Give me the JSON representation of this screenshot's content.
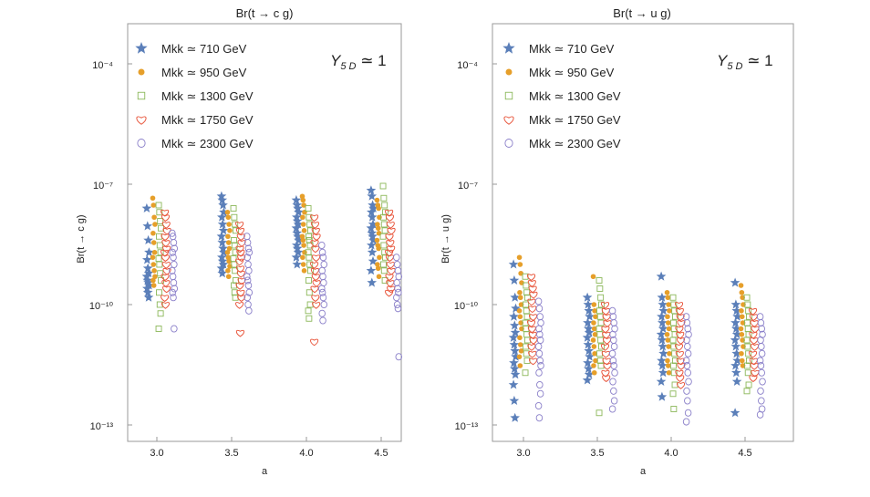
{
  "chart_data": [
    {
      "type": "scatter",
      "title": "Br(t → c g)",
      "xlabel": "a",
      "ylabel": "Br(t → c g)",
      "annotation": "Y5D ≃ 1",
      "yscale": "log",
      "xlim": [
        2.75,
        4.75
      ],
      "ylim": [
        3e-14,
        0.0005
      ],
      "xticks": [
        3.0,
        3.5,
        4.0,
        4.5
      ],
      "xtick_labels": [
        "3.0",
        "3.5",
        "4.0",
        "4.5"
      ],
      "yticks": [
        0.0001,
        1e-07,
        1e-10,
        1e-13
      ],
      "ytick_labels": [
        "10⁻⁴",
        "10⁻⁷",
        "10⁻¹⁰",
        "10⁻¹³"
      ],
      "legend_position": "top-left",
      "grid": false,
      "series": [
        {
          "name": "Mkk ≃ 710 GeV",
          "marker": "star",
          "color": "#5b7fb9",
          "offset": -0.06,
          "points": {
            "3.0": [
              2.5e-08,
              9e-09,
              4e-09,
              2e-09,
              1.3e-09,
              8e-10,
              6e-10,
              5e-10,
              4e-10,
              3.5e-10,
              3e-10,
              2.5e-10,
              2e-10,
              1.5e-10
            ],
            "3.5": [
              5e-08,
              4e-08,
              3e-08,
              2e-08,
              1.5e-08,
              1e-08,
              7e-09,
              5e-09,
              3.5e-09,
              2.5e-09,
              2e-09,
              1.5e-09,
              1.2e-09,
              1e-09,
              8e-10,
              6e-10
            ],
            "4.0": [
              4e-08,
              3e-08,
              2.5e-08,
              2e-08,
              1.5e-08,
              1.2e-08,
              1e-08,
              8e-09,
              6e-09,
              5e-09,
              4e-09,
              3e-09,
              2.5e-09,
              2e-09,
              1.5e-09,
              1e-09
            ],
            "4.5": [
              7e-08,
              5e-08,
              3e-08,
              2.5e-08,
              2e-08,
              1.5e-08,
              1e-08,
              8e-09,
              6e-09,
              5e-09,
              4e-09,
              3e-09,
              2e-09,
              1.2e-09,
              7e-10,
              3.5e-10
            ]
          }
        },
        {
          "name": "Mkk ≃ 950 GeV",
          "marker": "dot",
          "color": "#e69f2a",
          "offset": -0.02,
          "points": {
            "3.0": [
              4.5e-08,
              3e-08,
              1.5e-08,
              1e-08,
              6e-09,
              3.5e-09,
              2e-09,
              1.5e-09,
              1e-09,
              7e-10,
              5e-10,
              4e-10,
              3e-10
            ],
            "3.5": [
              2e-08,
              1.5e-08,
              1e-08,
              7e-09,
              5e-09,
              3.5e-09,
              2.5e-09,
              2e-09,
              1.5e-09,
              1.2e-09,
              9e-10,
              7e-10,
              5e-10
            ],
            "4.0": [
              5e-08,
              4e-08,
              3e-08,
              2e-08,
              1.5e-08,
              1e-08,
              7e-09,
              5e-09,
              4e-09,
              3e-09,
              2e-09,
              1.5e-09,
              1e-09,
              7e-10
            ],
            "4.5": [
              4e-08,
              3e-08,
              2.5e-08,
              1.5e-08,
              1e-08,
              8e-09,
              6e-09,
              4e-09,
              3e-09,
              2.5e-09,
              1.5e-09,
              1e-09,
              8e-10,
              5e-10
            ]
          }
        },
        {
          "name": "Mkk ≃ 1300 GeV",
          "marker": "square",
          "color": "#8cb85a",
          "offset": 0.02,
          "points": {
            "3.0": [
              3e-08,
              2e-08,
              1.2e-08,
              8e-09,
              5e-09,
              3e-09,
              2e-09,
              1.4e-09,
              1e-09,
              6e-10,
              4e-10,
              2e-10,
              1e-10,
              6e-11,
              2.5e-11
            ],
            "3.5": [
              2.5e-08,
              1.5e-08,
              1e-08,
              7e-09,
              4e-09,
              3e-09,
              2e-09,
              1.4e-09,
              1e-09,
              7e-10,
              4e-10,
              3e-10,
              2e-10,
              1.5e-10
            ],
            "4.0": [
              2.5e-08,
              1.5e-08,
              1e-08,
              7e-09,
              5e-09,
              4e-09,
              3e-09,
              2e-09,
              1.5e-09,
              1e-09,
              7e-10,
              4e-10,
              2e-10,
              1e-10,
              7e-11,
              4.5e-11
            ],
            "4.5": [
              9e-08,
              4.5e-08,
              3e-08,
              2e-08,
              1.5e-08,
              1e-08,
              7e-09,
              5e-09,
              3e-09,
              2e-09,
              1.5e-09,
              1e-09,
              7e-10,
              4e-10
            ]
          }
        },
        {
          "name": "Mkk ≃ 1750 GeV",
          "marker": "heart",
          "color": "#e8543a",
          "offset": 0.06,
          "points": {
            "3.0": [
              2e-08,
              1.5e-08,
              1e-08,
              7e-09,
              5e-09,
              3.5e-09,
              2.5e-09,
              2e-09,
              1.5e-09,
              1e-09,
              7e-10,
              5e-10,
              3.5e-10,
              2.5e-10,
              1.5e-10,
              1e-10
            ],
            "3.5": [
              1e-08,
              7e-09,
              5e-09,
              3.5e-09,
              2.5e-09,
              2e-09,
              1.5e-09,
              1.2e-09,
              8e-10,
              6e-10,
              4e-10,
              3e-10,
              2e-10,
              1.5e-10,
              1e-10,
              2e-11
            ],
            "4.0": [
              1.5e-08,
              1e-08,
              7e-09,
              5e-09,
              3.5e-09,
              2.5e-09,
              1.5e-09,
              1e-09,
              7e-10,
              5e-10,
              3.5e-10,
              2.5e-10,
              1.5e-10,
              1e-10,
              1.2e-11
            ],
            "4.5": [
              2e-08,
              1.5e-08,
              1e-08,
              7e-09,
              5e-09,
              3.5e-09,
              2.5e-09,
              2e-09,
              1.5e-09,
              1e-09,
              7e-10,
              5e-10,
              3.5e-10,
              2.5e-10,
              2e-10
            ]
          }
        },
        {
          "name": "Mkk ≃ 2300 GeV",
          "marker": "circle",
          "color": "#8a7fc9",
          "offset": 0.11,
          "points": {
            "3.0": [
              6e-09,
              5e-09,
              3.5e-09,
              2.5e-09,
              2e-09,
              1.5e-09,
              1e-09,
              7e-10,
              5e-10,
              3.5e-10,
              2.5e-10,
              2e-10,
              1.5e-10,
              2.5e-11
            ],
            "3.5": [
              5e-09,
              3.5e-09,
              2.5e-09,
              2e-09,
              1.5e-09,
              1e-09,
              7e-10,
              5e-10,
              4e-10,
              3e-10,
              2e-10,
              1.5e-10,
              1e-10,
              7e-11
            ],
            "4.0": [
              3e-09,
              2e-09,
              1.5e-09,
              1e-09,
              7e-10,
              5e-10,
              3.5e-10,
              2.5e-10,
              2e-10,
              1.5e-10,
              1e-10,
              6e-11,
              4e-11
            ],
            "4.5": [
              1.5e-09,
              1e-09,
              7e-10,
              5e-10,
              3.5e-10,
              2.5e-10,
              2e-10,
              1.5e-10,
              1e-10,
              8e-11,
              5e-12
            ]
          }
        }
      ]
    },
    {
      "type": "scatter",
      "title": "Br(t → u g)",
      "xlabel": "a",
      "ylabel": "Br(t → u g)",
      "annotation": "Y5D ≃ 1",
      "yscale": "log",
      "xlim": [
        2.75,
        4.75
      ],
      "ylim": [
        3e-14,
        0.0005
      ],
      "xticks": [
        3.0,
        3.5,
        4.0,
        4.5
      ],
      "xtick_labels": [
        "3.0",
        "3.5",
        "4.0",
        "4.5"
      ],
      "yticks": [
        0.0001,
        1e-07,
        1e-10,
        1e-13
      ],
      "ytick_labels": [
        "10⁻⁴",
        "10⁻⁷",
        "10⁻¹⁰",
        "10⁻¹³"
      ],
      "legend_position": "top-left",
      "grid": false,
      "series": [
        {
          "name": "Mkk ≃ 710 GeV",
          "marker": "star",
          "color": "#5b7fb9",
          "offset": -0.06,
          "points": {
            "3.0": [
              1e-09,
              4e-10,
              1.5e-10,
              8e-11,
              5e-11,
              3e-11,
              2e-11,
              1.5e-11,
              1e-11,
              7e-12,
              5e-12,
              3.5e-12,
              2.5e-12,
              1.8e-12,
              1e-12,
              4e-13,
              1.5e-13
            ],
            "3.5": [
              1.5e-10,
              1e-10,
              7e-11,
              5e-11,
              3.5e-11,
              2.5e-11,
              2e-11,
              1.5e-11,
              1e-11,
              7e-12,
              5e-12,
              3.5e-12,
              2.5e-12,
              1.8e-12,
              1.3e-12
            ],
            "4.0": [
              5e-10,
              1.5e-10,
              1e-10,
              7e-11,
              5e-11,
              3.5e-11,
              2.5e-11,
              1.8e-11,
              1.3e-11,
              9e-12,
              6e-12,
              4e-12,
              3e-12,
              2e-12,
              1.2e-12,
              5e-13
            ],
            "4.5": [
              3.5e-10,
              1e-10,
              7e-11,
              5e-11,
              3.5e-11,
              2.5e-11,
              1.8e-11,
              1.3e-11,
              9e-12,
              6e-12,
              4e-12,
              3e-12,
              2e-12,
              1.2e-12,
              2e-13
            ]
          }
        },
        {
          "name": "Mkk ≃ 950 GeV",
          "marker": "dot",
          "color": "#e69f2a",
          "offset": -0.02,
          "points": {
            "3.0": [
              1.5e-09,
              1e-09,
              6e-10,
              3.5e-10,
              2e-10,
              1.5e-10,
              1e-10,
              7e-11,
              5e-11,
              3.5e-11,
              2.5e-11,
              1.5e-11,
              1e-11,
              7e-12,
              5e-12,
              3e-12
            ],
            "3.5": [
              5e-10,
              1e-10,
              7e-11,
              5e-11,
              3.5e-11,
              2.5e-11,
              1.8e-11,
              1.3e-11,
              9e-12,
              6e-12,
              4e-12,
              3e-12,
              2e-12
            ],
            "4.0": [
              2e-10,
              1.5e-10,
              1e-10,
              7e-11,
              5e-11,
              3.5e-11,
              2.5e-11,
              1.8e-11,
              1.3e-11,
              9e-12,
              6e-12,
              4e-12,
              3e-12,
              2e-12
            ],
            "4.5": [
              3e-10,
              2e-10,
              1.5e-10,
              1e-10,
              7e-11,
              5e-11,
              3.5e-11,
              2.5e-11,
              1.8e-11,
              1.3e-11,
              9e-12,
              6e-12,
              4e-12,
              3e-12
            ]
          }
        },
        {
          "name": "Mkk ≃ 1300 GeV",
          "marker": "square",
          "color": "#8cb85a",
          "offset": 0.02,
          "points": {
            "3.0": [
              5e-10,
              3e-10,
              2e-10,
              1.5e-10,
              1e-10,
              7e-11,
              5e-11,
              3.5e-11,
              2.5e-11,
              1.8e-11,
              1.3e-11,
              9e-12,
              6e-12,
              4e-12,
              2e-12
            ],
            "3.5": [
              4e-10,
              2.5e-10,
              1.5e-10,
              1e-10,
              7e-11,
              5e-11,
              3.5e-11,
              2.5e-11,
              1.8e-11,
              1.3e-11,
              9e-12,
              6e-12,
              4e-12,
              3e-12,
              2e-13
            ],
            "4.0": [
              1.5e-10,
              1e-10,
              7e-11,
              5e-11,
              3.5e-11,
              2.5e-11,
              1.8e-11,
              1.3e-11,
              9e-12,
              6e-12,
              4e-12,
              3e-12,
              2e-12,
              1e-12,
              6e-13,
              2.5e-13
            ],
            "4.5": [
              1.5e-10,
              1e-10,
              7e-11,
              5e-11,
              3.5e-11,
              2.5e-11,
              1.8e-11,
              1.3e-11,
              9e-12,
              6e-12,
              4e-12,
              3e-12,
              2e-12,
              1e-12,
              7e-13
            ]
          }
        },
        {
          "name": "Mkk ≃ 1750 GeV",
          "marker": "heart",
          "color": "#e8543a",
          "offset": 0.06,
          "points": {
            "3.0": [
              5e-10,
              3.5e-10,
              2.5e-10,
              1.8e-10,
              1.2e-10,
              8e-11,
              5e-11,
              3.5e-11,
              2.5e-11,
              1.8e-11,
              1.3e-11,
              9e-12,
              6e-12,
              4e-12
            ],
            "3.5": [
              1e-10,
              7e-11,
              5e-11,
              3.5e-11,
              2.5e-11,
              1.8e-11,
              1.3e-11,
              9e-12,
              6e-12,
              4e-12,
              3e-12,
              2e-12,
              1.5e-12
            ],
            "4.0": [
              1e-10,
              7e-11,
              5e-11,
              3.5e-11,
              2.5e-11,
              1.8e-11,
              1.3e-11,
              9e-12,
              6e-12,
              4e-12,
              3e-12,
              2e-12,
              1.5e-12,
              1e-12
            ],
            "4.5": [
              7e-11,
              5e-11,
              3.5e-11,
              2.5e-11,
              1.8e-11,
              1.3e-11,
              9e-12,
              6e-12,
              4e-12,
              3e-12,
              2e-12,
              1.5e-12
            ]
          }
        },
        {
          "name": "Mkk ≃ 2300 GeV",
          "marker": "circle",
          "color": "#8a7fc9",
          "offset": 0.11,
          "points": {
            "3.0": [
              1.2e-10,
              8e-11,
              5e-11,
              3.5e-11,
              2.5e-11,
              1.8e-11,
              1.3e-11,
              9e-12,
              6e-12,
              4e-12,
              3e-12,
              2e-12,
              1e-12,
              6e-13,
              3e-13,
              1.5e-13
            ],
            "3.5": [
              7e-11,
              5e-11,
              3.5e-11,
              2.5e-11,
              1.8e-11,
              1.3e-11,
              9e-12,
              6e-12,
              4e-12,
              3e-12,
              2e-12,
              1.2e-12,
              7e-13,
              4e-13,
              2.5e-13
            ],
            "4.0": [
              5e-11,
              3.5e-11,
              2.5e-11,
              1.8e-11,
              1.3e-11,
              9e-12,
              6e-12,
              4e-12,
              3e-12,
              2e-12,
              1.2e-12,
              7e-13,
              4e-13,
              2e-13,
              1.2e-13
            ],
            "4.5": [
              5e-11,
              3.5e-11,
              2.5e-11,
              1.8e-11,
              1.3e-11,
              9e-12,
              6e-12,
              4e-12,
              3e-12,
              2e-12,
              1.2e-12,
              7e-13,
              4e-13,
              2.5e-13,
              1.8e-13
            ]
          }
        }
      ]
    }
  ]
}
